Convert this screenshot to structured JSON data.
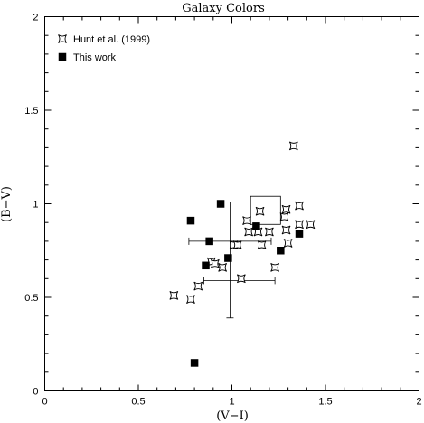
{
  "chart_data": {
    "type": "scatter",
    "title": "Galaxy Colors",
    "xlabel": "(V−I)",
    "ylabel": "(B−V)",
    "xlim": [
      0,
      2
    ],
    "ylim": [
      0,
      2
    ],
    "xticks": [
      0,
      0.5,
      1,
      1.5,
      2
    ],
    "yticks": [
      0,
      0.5,
      1,
      1.5,
      2
    ],
    "xtick_labels": [
      "0",
      "0.5",
      "1",
      "1.5",
      "2"
    ],
    "ytick_labels": [
      "0",
      "0.5",
      "1",
      "1.5",
      "2"
    ],
    "grid": false,
    "legend_position": "top-left",
    "series": [
      {
        "name": "Hunt et al. (1999)",
        "marker": "open-star",
        "points": [
          {
            "x": 1.33,
            "y": 1.31
          },
          {
            "x": 1.15,
            "y": 0.96
          },
          {
            "x": 1.36,
            "y": 0.99
          },
          {
            "x": 1.29,
            "y": 0.97
          },
          {
            "x": 1.28,
            "y": 0.93
          },
          {
            "x": 1.08,
            "y": 0.91
          },
          {
            "x": 1.36,
            "y": 0.89
          },
          {
            "x": 1.42,
            "y": 0.89
          },
          {
            "x": 1.09,
            "y": 0.85
          },
          {
            "x": 1.14,
            "y": 0.85
          },
          {
            "x": 1.2,
            "y": 0.85
          },
          {
            "x": 1.29,
            "y": 0.86
          },
          {
            "x": 1.01,
            "y": 0.78
          },
          {
            "x": 1.03,
            "y": 0.78
          },
          {
            "x": 1.16,
            "y": 0.78
          },
          {
            "x": 1.3,
            "y": 0.79
          },
          {
            "x": 0.89,
            "y": 0.69
          },
          {
            "x": 0.91,
            "y": 0.68
          },
          {
            "x": 0.95,
            "y": 0.66
          },
          {
            "x": 1.23,
            "y": 0.66
          },
          {
            "x": 1.05,
            "y": 0.6
          },
          {
            "x": 0.82,
            "y": 0.56
          },
          {
            "x": 0.69,
            "y": 0.51
          },
          {
            "x": 0.78,
            "y": 0.49
          }
        ]
      },
      {
        "name": "This work",
        "marker": "filled-square",
        "points": [
          {
            "x": 0.94,
            "y": 1.0
          },
          {
            "x": 0.78,
            "y": 0.91
          },
          {
            "x": 1.13,
            "y": 0.88
          },
          {
            "x": 0.88,
            "y": 0.8
          },
          {
            "x": 1.26,
            "y": 0.75
          },
          {
            "x": 1.36,
            "y": 0.84
          },
          {
            "x": 0.98,
            "y": 0.71
          },
          {
            "x": 0.86,
            "y": 0.67
          },
          {
            "x": 0.8,
            "y": 0.15
          }
        ]
      }
    ],
    "error_bars": [
      {
        "x": 0.99,
        "y": 0.8,
        "xerr": 0.22
      },
      {
        "x": 1.04,
        "y": 0.59,
        "xerr": 0.19
      },
      {
        "x": 0.99,
        "y": 0.7,
        "yerr": 0.31
      }
    ],
    "open_box": {
      "x0": 1.1,
      "x1": 1.26,
      "y0": 0.89,
      "y1": 1.04
    }
  }
}
